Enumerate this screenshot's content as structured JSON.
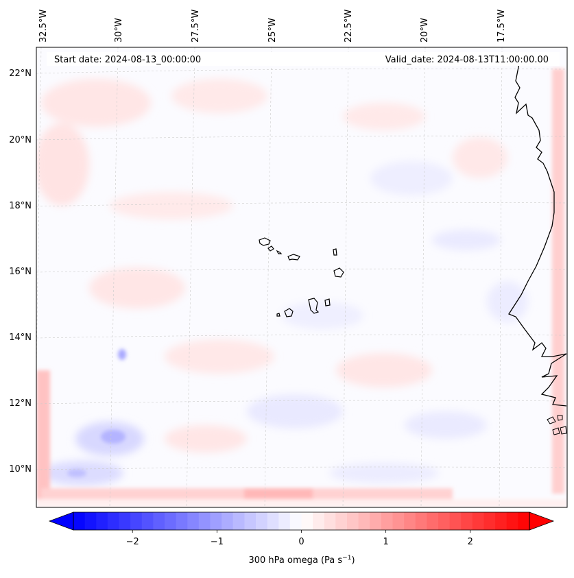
{
  "header": {
    "start_label": "Start date: 2024-08-13_00:00:00",
    "valid_label": "Valid_date: 2024-08-13T11:00:00.00"
  },
  "axes": {
    "lon_labels": [
      "32.5°W",
      "30°W",
      "27.5°W",
      "25°W",
      "22.5°W",
      "20°W",
      "17.5°W"
    ],
    "lat_labels": [
      "22°N",
      "20°N",
      "18°N",
      "16°N",
      "14°N",
      "12°N",
      "10°N"
    ]
  },
  "colorbar": {
    "ticks": [
      "−2",
      "−1",
      "0",
      "1",
      "2"
    ],
    "min": -2.7,
    "max": 2.7,
    "label": "300 hPa omega (Pa s",
    "label_sup": "−1",
    "label_end": ")"
  },
  "colors": {
    "negative": "#0000ff",
    "positive": "#ff0000",
    "neutral": "#ffffff"
  }
}
